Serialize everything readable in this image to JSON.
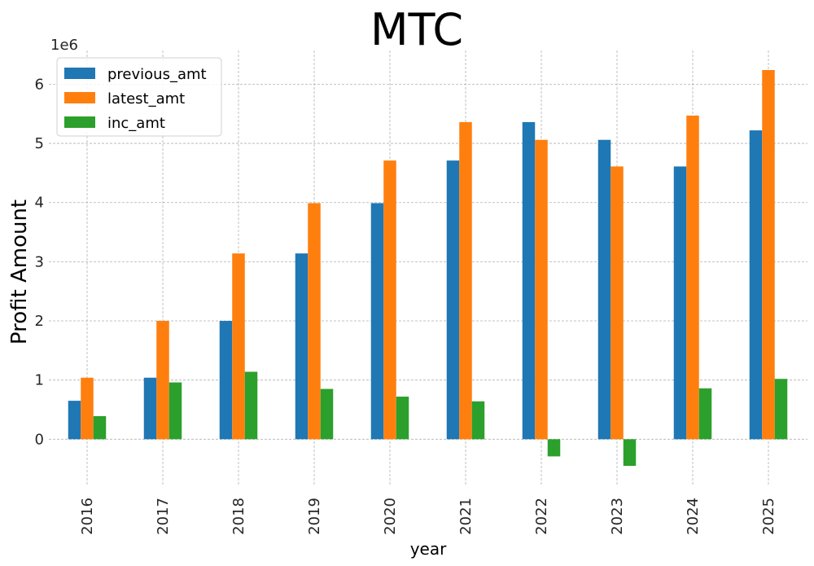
{
  "chart_data": {
    "type": "bar",
    "title": "MTC",
    "xlabel": "year",
    "ylabel": "Profit Amount",
    "y_offset_text": "1e6",
    "y_scale": 1000000,
    "categories": [
      "2016",
      "2017",
      "2018",
      "2019",
      "2020",
      "2021",
      "2022",
      "2023",
      "2024",
      "2025"
    ],
    "series": [
      {
        "name": "previous_amt",
        "color": "#1f77b4",
        "values": [
          650000,
          1040000,
          2000000,
          3140000,
          3990000,
          4710000,
          5360000,
          5060000,
          4610000,
          5220000
        ]
      },
      {
        "name": "latest_amt",
        "color": "#ff7f0e",
        "values": [
          1040000,
          2000000,
          3140000,
          3990000,
          4710000,
          5360000,
          5060000,
          4610000,
          5470000,
          6240000
        ]
      },
      {
        "name": "inc_amt",
        "color": "#2ca02c",
        "values": [
          390000,
          960000,
          1140000,
          850000,
          720000,
          640000,
          -290000,
          -450000,
          860000,
          1020000
        ]
      }
    ],
    "ylim": [
      -780000,
      6570000
    ],
    "yticks": [
      0,
      1000000,
      2000000,
      3000000,
      4000000,
      5000000,
      6000000
    ],
    "ytick_labels": [
      "0",
      "1",
      "2",
      "3",
      "4",
      "5",
      "6"
    ],
    "grid": true,
    "legend_position": "top-left"
  }
}
